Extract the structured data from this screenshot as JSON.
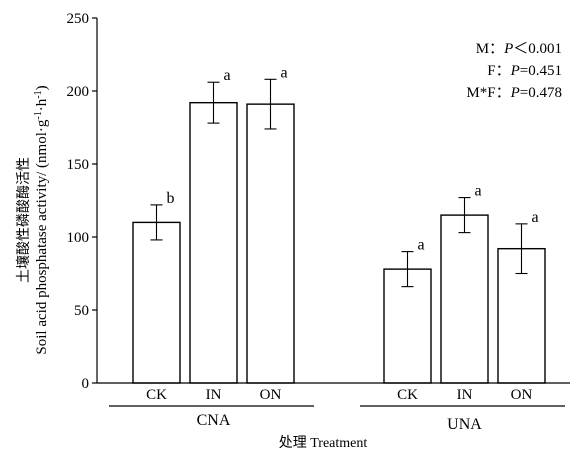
{
  "chart_data": {
    "type": "bar",
    "ylabel_cn": "土壤酸性磷酸酶活性",
    "ylabel_en": "Soil acid phosphatase activity/ (nmol·g",
    "ylabel_sup1": "-1",
    "ylabel_mid": "·h",
    "ylabel_sup2": "-1",
    "ylabel_end": ")",
    "xlabel": "处理 Treatment",
    "ylim": [
      0,
      250
    ],
    "yticks": [
      0,
      50,
      100,
      150,
      200,
      250
    ],
    "groups": [
      {
        "name": "CNA",
        "bars": [
          {
            "category": "CK",
            "value": 110,
            "error": 12,
            "letter": "b"
          },
          {
            "category": "IN",
            "value": 192,
            "error": 14,
            "letter": "a"
          },
          {
            "category": "ON",
            "value": 191,
            "error": 17,
            "letter": "a"
          }
        ]
      },
      {
        "name": "UNA",
        "bars": [
          {
            "category": "CK",
            "value": 78,
            "error": 12,
            "letter": "a"
          },
          {
            "category": "IN",
            "value": 115,
            "error": 12,
            "letter": "a"
          },
          {
            "category": "ON",
            "value": 92,
            "error": 17,
            "letter": "a"
          }
        ]
      }
    ],
    "stats": [
      {
        "factor": "M：",
        "p_label": "P",
        "p_value": "＜0.001"
      },
      {
        "factor": "F：",
        "p_label": "P",
        "p_value": "=0.451"
      },
      {
        "factor": "M*F：",
        "p_label": "P",
        "p_value": "=0.478"
      }
    ]
  }
}
